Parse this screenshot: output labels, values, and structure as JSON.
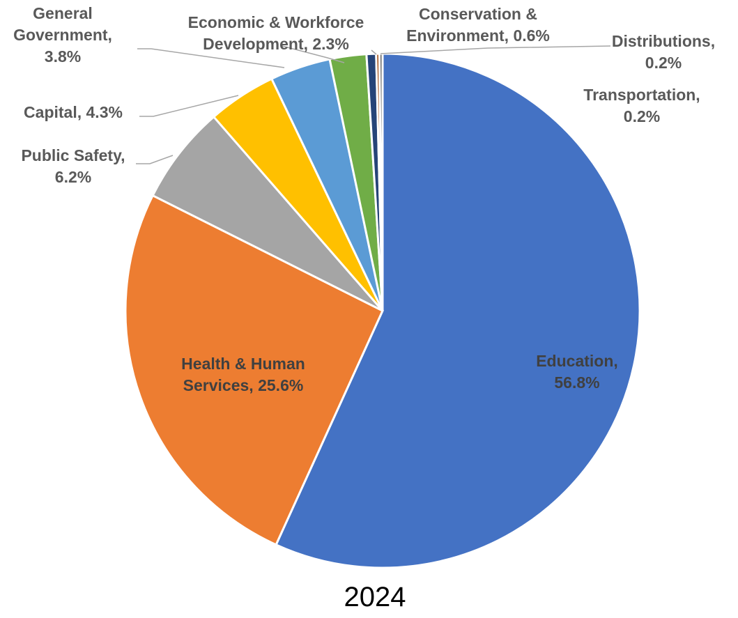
{
  "chart_data": {
    "type": "pie",
    "caption": "2024",
    "slices": [
      {
        "name": "Education",
        "value": 56.8,
        "color": "#4472C4",
        "label_lines": [
          "Education,",
          "56.8%"
        ]
      },
      {
        "name": "Health & Human Services",
        "value": 25.6,
        "color": "#ED7D31",
        "label_lines": [
          "Health & Human",
          "Services, 25.6%"
        ]
      },
      {
        "name": "Public Safety",
        "value": 6.2,
        "color": "#A5A5A5",
        "label_lines": [
          "Public Safety,",
          "6.2%"
        ]
      },
      {
        "name": "Capital",
        "value": 4.3,
        "color": "#FFC000",
        "label_lines": [
          "Capital, 4.3%"
        ]
      },
      {
        "name": "General Government",
        "value": 3.8,
        "color": "#5B9BD5",
        "label_lines": [
          "General",
          "Government,",
          "3.8%"
        ]
      },
      {
        "name": "Economic & Workforce Development",
        "value": 2.3,
        "color": "#70AD47",
        "label_lines": [
          "Economic & Workforce",
          "Development, 2.3%"
        ]
      },
      {
        "name": "Conservation & Environment",
        "value": 0.6,
        "color": "#264478",
        "label_lines": [
          "Conservation &",
          "Environment, 0.6%"
        ]
      },
      {
        "name": "Distributions",
        "value": 0.2,
        "color": "#9E480E",
        "label_lines": [
          "Distributions,",
          "0.2%"
        ]
      },
      {
        "name": "Transportation",
        "value": 0.2,
        "color": "#636363",
        "label_lines": [
          "Transportation,",
          "0.2%"
        ]
      }
    ]
  }
}
